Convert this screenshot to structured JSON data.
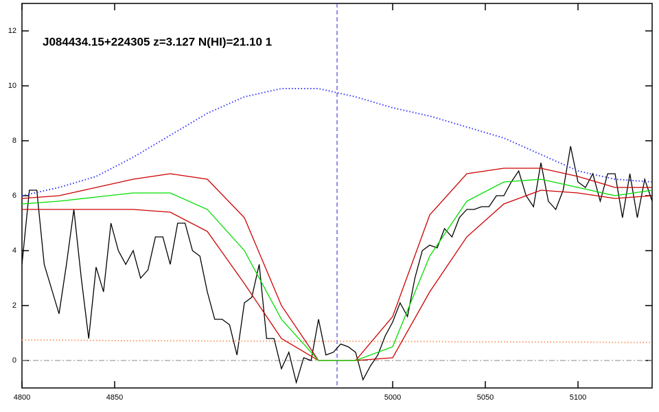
{
  "chart_data": {
    "type": "line",
    "title": "J084434.15+224305 z=3.127 N(HI)=21.10 1",
    "xlim": [
      4800,
      5140
    ],
    "ylim": [
      -1,
      13
    ],
    "xticks": [
      4800,
      4850,
      5000,
      5050,
      5100
    ],
    "yticks": [
      0,
      2,
      4,
      6,
      8,
      10,
      12
    ],
    "vline": 4970,
    "hline": 0,
    "series": [
      {
        "color": "#000000",
        "style": "solid",
        "x": [
          4800,
          4804,
          4808,
          4812,
          4816,
          4820,
          4824,
          4828,
          4832,
          4836,
          4840,
          4844,
          4848,
          4852,
          4856,
          4860,
          4864,
          4868,
          4872,
          4876,
          4880,
          4884,
          4888,
          4892,
          4896,
          4900,
          4904,
          4908,
          4912,
          4916,
          4920,
          4924,
          4928,
          4932,
          4936,
          4940,
          4944,
          4948,
          4952,
          4956,
          4960,
          4964,
          4968,
          4972,
          4976,
          4980,
          4984,
          4988,
          4992,
          4996,
          5000,
          5004,
          5008,
          5012,
          5016,
          5020,
          5024,
          5028,
          5032,
          5036,
          5040,
          5044,
          5048,
          5052,
          5056,
          5060,
          5064,
          5068,
          5072,
          5076,
          5080,
          5084,
          5088,
          5092,
          5096,
          5100,
          5104,
          5108,
          5112,
          5116,
          5120,
          5124,
          5128,
          5132,
          5136,
          5140
        ],
        "values": [
          3.5,
          6.2,
          6.2,
          3.5,
          2.6,
          1.7,
          3.5,
          5.5,
          3,
          0.8,
          3.4,
          2.5,
          5,
          4,
          3.5,
          4,
          3,
          3.3,
          4.5,
          4.5,
          3.5,
          5,
          5,
          4,
          3.8,
          2.5,
          1.5,
          1.5,
          1.3,
          0.2,
          2.1,
          2.3,
          3.5,
          0.8,
          0.8,
          -0.3,
          0.3,
          -0.8,
          0.1,
          0,
          1.5,
          0.2,
          0.3,
          0.6,
          0.5,
          0.3,
          -0.7,
          -0.2,
          0.2,
          0.9,
          1.4,
          2.1,
          1.6,
          3,
          4,
          4.2,
          4.1,
          4.8,
          4.5,
          5.2,
          5.5,
          5.5,
          5.6,
          5.6,
          6,
          6,
          6.5,
          6.9,
          6,
          5.6,
          7.2,
          5.8,
          5.5,
          6.2,
          7.8,
          6.5,
          6.3,
          6.8,
          5.8,
          6.8,
          6.8,
          5.2,
          6.8,
          5.2,
          6.6,
          5.8
        ]
      },
      {
        "color": "#3333ff",
        "style": "dotted",
        "x": [
          4800,
          4820,
          4840,
          4860,
          4880,
          4900,
          4920,
          4940,
          4960,
          4980,
          5000,
          5020,
          5040,
          5060,
          5080,
          5100,
          5120,
          5140
        ],
        "values": [
          6.0,
          6.3,
          6.7,
          7.4,
          8.2,
          9.0,
          9.6,
          9.9,
          9.9,
          9.6,
          9.2,
          8.9,
          8.5,
          8.1,
          7.5,
          6.9,
          6.6,
          6.5
        ]
      },
      {
        "color": "#ff9966",
        "style": "dotted",
        "x": [
          4800,
          4820,
          4840,
          4860,
          4880,
          4900,
          4920,
          4940,
          4960,
          4980,
          5000,
          5020,
          5040,
          5060,
          5080,
          5100,
          5120,
          5140
        ],
        "values": [
          0.75,
          0.74,
          0.73,
          0.72,
          0.72,
          0.71,
          0.71,
          0.7,
          0.7,
          0.7,
          0.69,
          0.69,
          0.68,
          0.68,
          0.67,
          0.67,
          0.66,
          0.66
        ]
      },
      {
        "color": "#cc0000",
        "style": "solid",
        "x": [
          4800,
          4820,
          4840,
          4860,
          4880,
          4900,
          4920,
          4940,
          4960,
          4980,
          5000,
          5020,
          5040,
          5060,
          5080,
          5100,
          5120,
          5140
        ],
        "values": [
          5.9,
          6.0,
          6.3,
          6.6,
          6.8,
          6.6,
          5.2,
          2.0,
          0,
          0,
          1.6,
          5.3,
          6.8,
          7.0,
          7.0,
          6.7,
          6.3,
          6.3
        ]
      },
      {
        "color": "#cc0000",
        "style": "solid",
        "x": [
          4800,
          4820,
          4840,
          4860,
          4880,
          4900,
          4920,
          4940,
          4960,
          4980,
          5000,
          5020,
          5040,
          5060,
          5080,
          5100,
          5120,
          5140
        ],
        "values": [
          5.5,
          5.5,
          5.5,
          5.5,
          5.4,
          4.7,
          2.8,
          0.8,
          0,
          0,
          0.1,
          2.5,
          4.5,
          5.7,
          6.2,
          6.1,
          5.9,
          6.0
        ]
      },
      {
        "color": "#00dd00",
        "style": "solid",
        "x": [
          4800,
          4820,
          4840,
          4860,
          4880,
          4900,
          4920,
          4940,
          4960,
          4980,
          5000,
          5020,
          5040,
          5060,
          5080,
          5100,
          5120,
          5140
        ],
        "values": [
          5.7,
          5.8,
          5.95,
          6.1,
          6.1,
          5.5,
          4.0,
          1.5,
          0,
          0,
          0.5,
          3.8,
          5.8,
          6.5,
          6.6,
          6.3,
          6.0,
          6.2
        ]
      }
    ]
  }
}
